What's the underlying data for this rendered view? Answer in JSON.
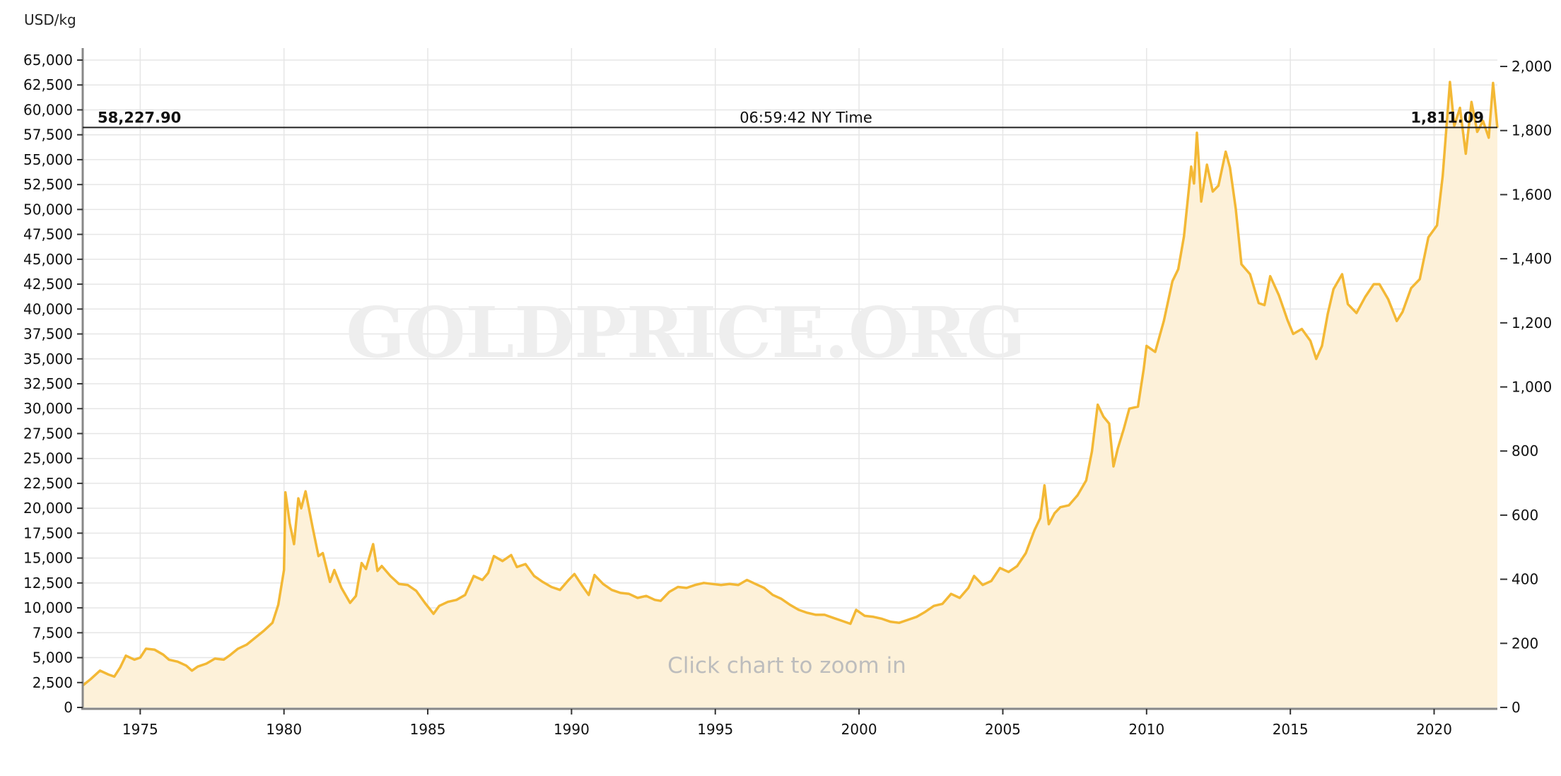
{
  "chart_data": {
    "type": "area",
    "unit_label": "USD/kg",
    "watermark": "GOLDPRICE.ORG",
    "hint": "Click chart to zoom in",
    "crosshair": {
      "left_value": "58,227.90",
      "time": "06:59:42 NY Time",
      "right_value": "1,811.09",
      "price_usd_kg": 58227.9
    },
    "x_range": [
      1973.0,
      2022.2
    ],
    "x_ticks": [
      1975,
      1980,
      1985,
      1990,
      1995,
      2000,
      2005,
      2010,
      2015,
      2020
    ],
    "y_left": {
      "min": 0,
      "max": 65000,
      "step": 2500,
      "tick_labels": [
        "0",
        "2,500",
        "5,000",
        "7,500",
        "10,000",
        "12,500",
        "15,000",
        "17,500",
        "20,000",
        "22,500",
        "25,000",
        "27,500",
        "30,000",
        "32,500",
        "35,000",
        "37,500",
        "40,000",
        "42,500",
        "45,000",
        "47,500",
        "50,000",
        "52,500",
        "55,000",
        "57,500",
        "60,000",
        "62,500",
        "65,000"
      ]
    },
    "y_right": {
      "min": 0,
      "max": 2000,
      "step": 200,
      "tick_labels": [
        "0",
        "200",
        "400",
        "600",
        "800",
        "1,000",
        "1,200",
        "1,400",
        "1,600",
        "1,800",
        "2,000"
      ]
    },
    "grid": true,
    "colors": {
      "line": "#f3b835",
      "fill": "#fdf1d9",
      "grid": "#e6e6e6",
      "axis": "#888888",
      "crosshair": "#222222"
    },
    "series": [
      {
        "points": [
          [
            1973.0,
            2200
          ],
          [
            1973.3,
            2900
          ],
          [
            1973.6,
            3700
          ],
          [
            1973.9,
            3300
          ],
          [
            1974.1,
            3100
          ],
          [
            1974.3,
            4000
          ],
          [
            1974.5,
            5200
          ],
          [
            1974.8,
            4800
          ],
          [
            1975.0,
            5000
          ],
          [
            1975.2,
            5900
          ],
          [
            1975.5,
            5800
          ],
          [
            1975.8,
            5300
          ],
          [
            1976.0,
            4800
          ],
          [
            1976.3,
            4600
          ],
          [
            1976.6,
            4200
          ],
          [
            1976.8,
            3700
          ],
          [
            1977.0,
            4100
          ],
          [
            1977.3,
            4400
          ],
          [
            1977.6,
            4900
          ],
          [
            1977.9,
            4800
          ],
          [
            1978.1,
            5200
          ],
          [
            1978.4,
            5900
          ],
          [
            1978.7,
            6300
          ],
          [
            1979.0,
            7000
          ],
          [
            1979.3,
            7700
          ],
          [
            1979.6,
            8500
          ],
          [
            1979.8,
            10300
          ],
          [
            1980.0,
            13800
          ],
          [
            1980.05,
            21600
          ],
          [
            1980.2,
            18500
          ],
          [
            1980.35,
            16400
          ],
          [
            1980.5,
            21000
          ],
          [
            1980.6,
            20000
          ],
          [
            1980.75,
            21700
          ],
          [
            1981.0,
            18000
          ],
          [
            1981.2,
            15200
          ],
          [
            1981.35,
            15500
          ],
          [
            1981.6,
            12600
          ],
          [
            1981.75,
            13800
          ],
          [
            1982.0,
            12000
          ],
          [
            1982.3,
            10500
          ],
          [
            1982.5,
            11200
          ],
          [
            1982.7,
            14500
          ],
          [
            1982.85,
            13900
          ],
          [
            1983.1,
            16400
          ],
          [
            1983.25,
            13700
          ],
          [
            1983.4,
            14200
          ],
          [
            1983.7,
            13200
          ],
          [
            1984.0,
            12400
          ],
          [
            1984.3,
            12300
          ],
          [
            1984.6,
            11700
          ],
          [
            1984.9,
            10500
          ],
          [
            1985.2,
            9400
          ],
          [
            1985.4,
            10200
          ],
          [
            1985.7,
            10600
          ],
          [
            1986.0,
            10800
          ],
          [
            1986.3,
            11300
          ],
          [
            1986.6,
            13200
          ],
          [
            1986.9,
            12800
          ],
          [
            1987.1,
            13500
          ],
          [
            1987.3,
            15200
          ],
          [
            1987.6,
            14700
          ],
          [
            1987.9,
            15300
          ],
          [
            1988.1,
            14100
          ],
          [
            1988.4,
            14400
          ],
          [
            1988.7,
            13200
          ],
          [
            1989.0,
            12600
          ],
          [
            1989.3,
            12100
          ],
          [
            1989.6,
            11800
          ],
          [
            1989.9,
            12800
          ],
          [
            1990.1,
            13400
          ],
          [
            1990.4,
            12100
          ],
          [
            1990.6,
            11300
          ],
          [
            1990.8,
            13300
          ],
          [
            1991.1,
            12400
          ],
          [
            1991.4,
            11800
          ],
          [
            1991.7,
            11500
          ],
          [
            1992.0,
            11400
          ],
          [
            1992.3,
            11000
          ],
          [
            1992.6,
            11200
          ],
          [
            1992.9,
            10800
          ],
          [
            1993.1,
            10700
          ],
          [
            1993.4,
            11600
          ],
          [
            1993.7,
            12100
          ],
          [
            1994.0,
            12000
          ],
          [
            1994.3,
            12300
          ],
          [
            1994.6,
            12500
          ],
          [
            1994.9,
            12400
          ],
          [
            1995.2,
            12300
          ],
          [
            1995.5,
            12400
          ],
          [
            1995.8,
            12300
          ],
          [
            1996.1,
            12800
          ],
          [
            1996.4,
            12400
          ],
          [
            1996.7,
            12000
          ],
          [
            1997.0,
            11300
          ],
          [
            1997.3,
            10900
          ],
          [
            1997.6,
            10300
          ],
          [
            1997.9,
            9800
          ],
          [
            1998.2,
            9500
          ],
          [
            1998.5,
            9300
          ],
          [
            1998.8,
            9300
          ],
          [
            1999.1,
            9000
          ],
          [
            1999.4,
            8700
          ],
          [
            1999.7,
            8400
          ],
          [
            1999.9,
            9800
          ],
          [
            2000.2,
            9200
          ],
          [
            2000.5,
            9100
          ],
          [
            2000.8,
            8900
          ],
          [
            2001.1,
            8600
          ],
          [
            2001.4,
            8500
          ],
          [
            2001.7,
            8800
          ],
          [
            2002.0,
            9100
          ],
          [
            2002.3,
            9600
          ],
          [
            2002.6,
            10200
          ],
          [
            2002.9,
            10400
          ],
          [
            2003.2,
            11400
          ],
          [
            2003.5,
            11000
          ],
          [
            2003.8,
            12000
          ],
          [
            2004.0,
            13200
          ],
          [
            2004.3,
            12300
          ],
          [
            2004.6,
            12700
          ],
          [
            2004.9,
            14000
          ],
          [
            2005.2,
            13600
          ],
          [
            2005.5,
            14200
          ],
          [
            2005.8,
            15500
          ],
          [
            2006.1,
            17800
          ],
          [
            2006.3,
            19000
          ],
          [
            2006.45,
            22300
          ],
          [
            2006.6,
            18400
          ],
          [
            2006.8,
            19500
          ],
          [
            2007.0,
            20100
          ],
          [
            2007.3,
            20300
          ],
          [
            2007.6,
            21300
          ],
          [
            2007.9,
            22800
          ],
          [
            2008.1,
            25700
          ],
          [
            2008.3,
            30400
          ],
          [
            2008.5,
            29200
          ],
          [
            2008.7,
            28500
          ],
          [
            2008.85,
            24200
          ],
          [
            2009.0,
            26000
          ],
          [
            2009.2,
            27900
          ],
          [
            2009.4,
            30000
          ],
          [
            2009.7,
            30200
          ],
          [
            2009.9,
            34000
          ],
          [
            2010.0,
            36300
          ],
          [
            2010.3,
            35700
          ],
          [
            2010.6,
            38800
          ],
          [
            2010.9,
            42800
          ],
          [
            2011.1,
            44000
          ],
          [
            2011.3,
            47300
          ],
          [
            2011.55,
            54300
          ],
          [
            2011.65,
            52600
          ],
          [
            2011.75,
            57700
          ],
          [
            2011.9,
            50800
          ],
          [
            2012.1,
            54500
          ],
          [
            2012.3,
            51800
          ],
          [
            2012.5,
            52400
          ],
          [
            2012.75,
            55800
          ],
          [
            2012.9,
            54200
          ],
          [
            2013.1,
            50100
          ],
          [
            2013.3,
            44500
          ],
          [
            2013.6,
            43500
          ],
          [
            2013.9,
            40600
          ],
          [
            2014.1,
            40400
          ],
          [
            2014.3,
            43300
          ],
          [
            2014.6,
            41400
          ],
          [
            2014.9,
            38900
          ],
          [
            2015.1,
            37500
          ],
          [
            2015.4,
            38000
          ],
          [
            2015.7,
            36800
          ],
          [
            2015.9,
            35000
          ],
          [
            2016.1,
            36300
          ],
          [
            2016.3,
            39500
          ],
          [
            2016.5,
            42000
          ],
          [
            2016.8,
            43500
          ],
          [
            2017.0,
            40500
          ],
          [
            2017.3,
            39600
          ],
          [
            2017.6,
            41200
          ],
          [
            2017.9,
            42500
          ],
          [
            2018.1,
            42500
          ],
          [
            2018.4,
            41000
          ],
          [
            2018.7,
            38800
          ],
          [
            2018.9,
            39700
          ],
          [
            2019.2,
            42100
          ],
          [
            2019.5,
            43000
          ],
          [
            2019.8,
            47200
          ],
          [
            2020.1,
            48400
          ],
          [
            2020.3,
            53400
          ],
          [
            2020.55,
            62800
          ],
          [
            2020.7,
            58400
          ],
          [
            2020.9,
            60200
          ],
          [
            2021.1,
            55600
          ],
          [
            2021.3,
            60800
          ],
          [
            2021.5,
            57800
          ],
          [
            2021.7,
            58900
          ],
          [
            2021.9,
            57200
          ],
          [
            2022.05,
            62700
          ],
          [
            2022.2,
            58200
          ]
        ]
      }
    ]
  }
}
